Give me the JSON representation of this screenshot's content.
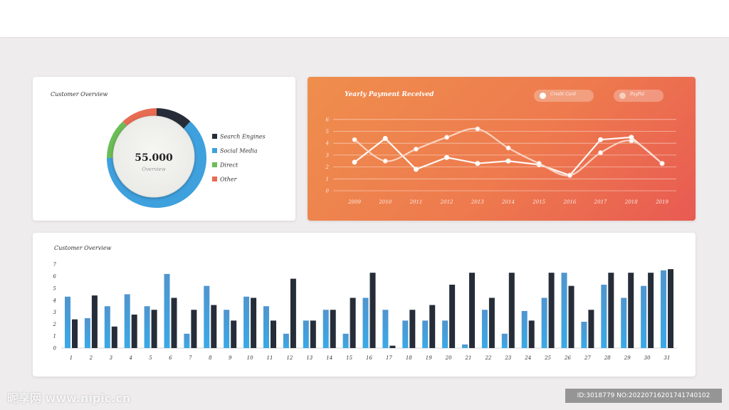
{
  "donut_card": {
    "title": "Customer Overview",
    "center_value": "55.000",
    "center_label": "Overview"
  },
  "line_card": {
    "title": "Yearly Payment Received",
    "legend_credit": "Credit Card",
    "legend_paypal": "PayPal"
  },
  "bar_card": {
    "title": "Customer Overview"
  },
  "watermark": {
    "left": "昵享网 www.nipic.cn",
    "right": "ID:3018779 NO:20220716201741740102"
  },
  "chart_data": [
    {
      "type": "pie",
      "labels": [
        "Search Engines",
        "Social Media",
        "Direct",
        "Other"
      ],
      "values": [
        9,
        48,
        10,
        9
      ],
      "colors": [
        "#262d39",
        "#3fa0de",
        "#6bbd57",
        "#e86b52"
      ]
    },
    {
      "type": "line",
      "title": "Yearly Payment Received",
      "x": [
        "2009",
        "2010",
        "2011",
        "2012",
        "2013",
        "2014",
        "2015",
        "2016",
        "2017",
        "2018",
        "2019"
      ],
      "ylim": [
        0,
        6
      ],
      "yticks": [
        0,
        1,
        2,
        3,
        4,
        5,
        6
      ],
      "series": [
        {
          "name": "Credit Card",
          "values": [
            2.4,
            4.4,
            1.8,
            2.8,
            2.3,
            2.5,
            2.2,
            1.3,
            4.3,
            4.5,
            2.3
          ]
        },
        {
          "name": "PayPal",
          "values": [
            4.3,
            2.5,
            3.5,
            4.5,
            5.2,
            3.6,
            2.3,
            1.3,
            3.2,
            4.2,
            2.3
          ]
        }
      ],
      "grid": true
    },
    {
      "type": "bar",
      "title": "Customer Overview",
      "categories": [
        "1",
        "2",
        "3",
        "4",
        "5",
        "6",
        "7",
        "8",
        "9",
        "10",
        "11",
        "12",
        "13",
        "14",
        "15",
        "16",
        "17",
        "18",
        "19",
        "20",
        "21",
        "22",
        "23",
        "24",
        "25",
        "26",
        "27",
        "28",
        "29",
        "30",
        "31"
      ],
      "ylim": [
        0,
        7
      ],
      "yticks": [
        0,
        1,
        2,
        3,
        4,
        5,
        6,
        7
      ],
      "series": [
        {
          "values": [
            4.3,
            2.5,
            3.5,
            4.5,
            3.5,
            6.2,
            1.2,
            5.2,
            3.2,
            4.3,
            3.5,
            1.2,
            2.3,
            3.2,
            1.2,
            4.2,
            3.2,
            2.3,
            2.3,
            2.3,
            0.3,
            3.2,
            1.2,
            3.1,
            4.2,
            6.3,
            2.2,
            5.3,
            4.2,
            5.2,
            6.5
          ],
          "color": "#3fa0de"
        },
        {
          "values": [
            2.4,
            4.4,
            1.8,
            2.8,
            3.2,
            4.2,
            3.2,
            3.6,
            2.3,
            4.2,
            2.3,
            5.8,
            2.3,
            3.2,
            4.2,
            6.3,
            0.2,
            3.2,
            3.6,
            5.3,
            6.3,
            4.2,
            6.3,
            2.3,
            6.3,
            5.2,
            3.2,
            6.3,
            6.3,
            6.3,
            6.6
          ],
          "color": "#262d39"
        }
      ]
    }
  ]
}
